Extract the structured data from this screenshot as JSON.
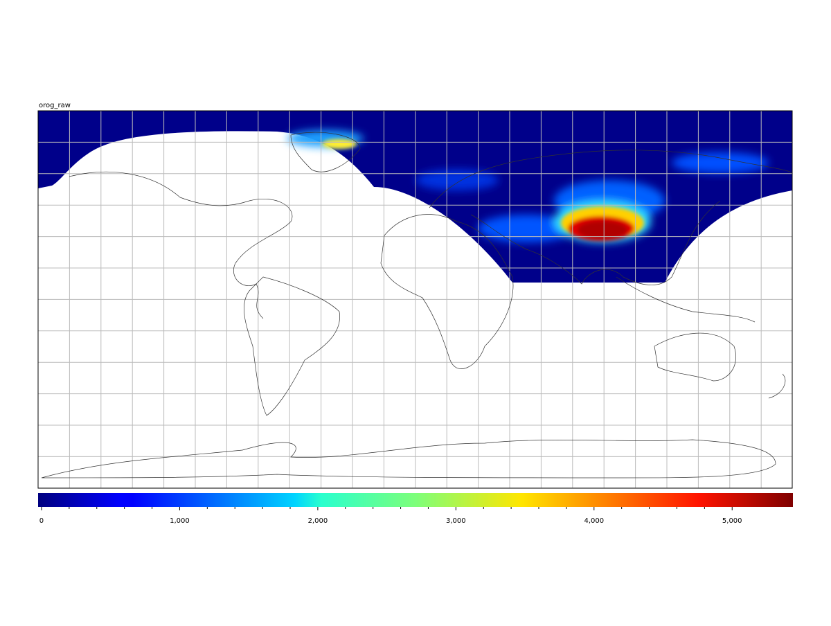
{
  "title": "orog_raw",
  "colorbar": {
    "clim": [
      -25,
      5440
    ],
    "ticks": [
      0,
      {
        "value": 1000,
        "label": "1,000"
      },
      {
        "value": 2000,
        "label": "2,000"
      },
      {
        "value": 3000,
        "label": "3,000"
      },
      {
        "value": 4000,
        "label": "4,000"
      },
      {
        "value": 5000,
        "label": "5,000"
      }
    ]
  }
}
